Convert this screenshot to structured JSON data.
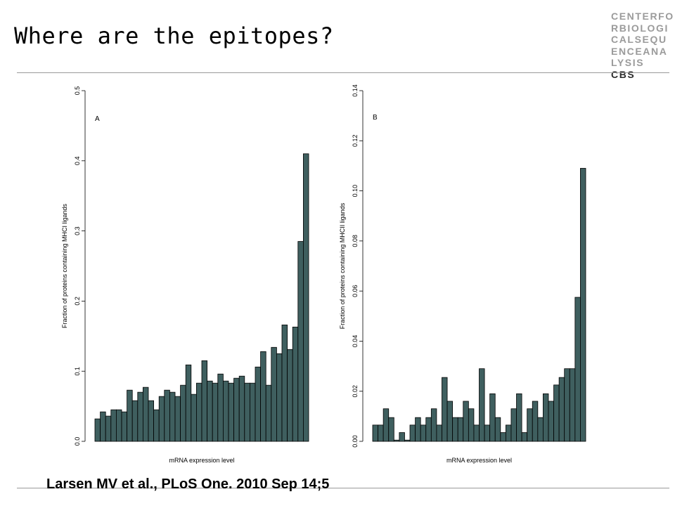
{
  "slide": {
    "title": "Where are the epitopes?",
    "citation": "Larsen MV et al., PLoS One. 2010 Sep 14;5"
  },
  "logo": {
    "lines": [
      "CENTERFO",
      "RBIOLOGI",
      "CALSEQU",
      "ENCEANA",
      "LYSIS"
    ],
    "accent": "CBS"
  },
  "colors": {
    "bar_fill": "#3f5f5f",
    "rule": "#999999"
  },
  "chart_data": [
    {
      "type": "bar",
      "panel_label": "A",
      "xlabel": "mRNA expression level",
      "ylabel": "Fraction of proteins containing MHCI ligands",
      "ylim": [
        0,
        0.5
      ],
      "yticks": [
        0.0,
        0.1,
        0.2,
        0.3,
        0.4,
        0.5
      ],
      "ytick_labels": [
        "0.0",
        "0.1",
        "0.2",
        "0.3",
        "0.4",
        "0.5"
      ],
      "values": [
        0.032,
        0.042,
        0.036,
        0.045,
        0.045,
        0.042,
        0.073,
        0.058,
        0.07,
        0.077,
        0.058,
        0.045,
        0.064,
        0.073,
        0.07,
        0.064,
        0.08,
        0.109,
        0.067,
        0.083,
        0.115,
        0.086,
        0.083,
        0.096,
        0.086,
        0.083,
        0.09,
        0.093,
        0.083,
        0.083,
        0.106,
        0.128,
        0.08,
        0.134,
        0.125,
        0.166,
        0.131,
        0.163,
        0.285,
        0.41
      ]
    },
    {
      "type": "bar",
      "panel_label": "B",
      "xlabel": "mRNA expression level",
      "ylabel": "Fraction of proteins containing MHCII ligands",
      "ylim": [
        0,
        0.14
      ],
      "yticks": [
        0.0,
        0.02,
        0.04,
        0.06,
        0.08,
        0.1,
        0.12,
        0.14
      ],
      "ytick_labels": [
        "0.00",
        "0.02",
        "0.04",
        "0.06",
        "0.08",
        "0.10",
        "0.12",
        "0.14"
      ],
      "values": [
        0.0065,
        0.0065,
        0.013,
        0.0095,
        0.0005,
        0.0035,
        0.0005,
        0.0065,
        0.0095,
        0.0065,
        0.0095,
        0.013,
        0.0065,
        0.0255,
        0.016,
        0.0095,
        0.0095,
        0.016,
        0.013,
        0.0065,
        0.029,
        0.0065,
        0.019,
        0.0095,
        0.0035,
        0.0065,
        0.013,
        0.019,
        0.0035,
        0.013,
        0.016,
        0.0095,
        0.019,
        0.016,
        0.0225,
        0.0255,
        0.029,
        0.029,
        0.0575,
        0.109
      ]
    }
  ]
}
